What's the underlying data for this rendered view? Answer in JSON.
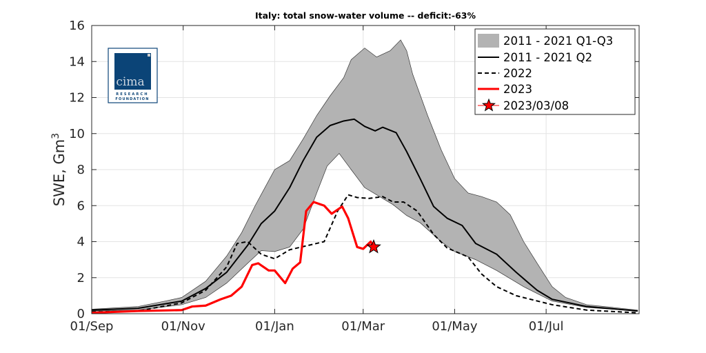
{
  "chart_data": {
    "type": "line",
    "title": "Italy: total snow-water volume -- deficit:-63%",
    "xlabel": "",
    "ylabel": "SWE, Gm",
    "ylabel_superscript": "3",
    "ylim": [
      0,
      16
    ],
    "yticks": [
      0,
      2,
      4,
      6,
      8,
      10,
      12,
      14,
      16
    ],
    "xlim": [
      "09-01",
      "08-31"
    ],
    "xticks": [
      {
        "date": "09-01",
        "label": "01/Sep"
      },
      {
        "date": "11-01",
        "label": "01/Nov"
      },
      {
        "date": "01-01",
        "label": "01/Jan"
      },
      {
        "date": "03-01",
        "label": "01/Mar"
      },
      {
        "date": "05-01",
        "label": "01/May"
      },
      {
        "date": "07-01",
        "label": "01/Jul"
      }
    ],
    "grid": true,
    "legend_position": "top-right",
    "band": {
      "name": "2011 - 2021 Q1-Q3",
      "color": "#b3b3b3",
      "upper": [
        [
          "09-01",
          0.25
        ],
        [
          "10-02",
          0.4
        ],
        [
          "10-20",
          0.7
        ],
        [
          "10-31",
          0.9
        ],
        [
          "11-16",
          1.8
        ],
        [
          "11-30",
          3.2
        ],
        [
          "12-10",
          4.5
        ],
        [
          "12-19",
          6.0
        ],
        [
          "01-01",
          8.0
        ],
        [
          "01-11",
          8.5
        ],
        [
          "01-20",
          9.7
        ],
        [
          "01-29",
          11.0
        ],
        [
          "02-07",
          12.1
        ],
        [
          "02-16",
          13.1
        ],
        [
          "02-21",
          14.1
        ],
        [
          "03-02",
          14.75
        ],
        [
          "03-10",
          14.25
        ],
        [
          "03-19",
          14.6
        ],
        [
          "03-26",
          15.2
        ],
        [
          "03-30",
          14.6
        ],
        [
          "04-03",
          13.3
        ],
        [
          "04-13",
          11.0
        ],
        [
          "04-22",
          9.1
        ],
        [
          "05-01",
          7.5
        ],
        [
          "05-10",
          6.7
        ],
        [
          "05-19",
          6.5
        ],
        [
          "05-29",
          6.2
        ],
        [
          "06-07",
          5.5
        ],
        [
          "06-16",
          4.0
        ],
        [
          "06-25",
          2.8
        ],
        [
          "07-05",
          1.5
        ],
        [
          "07-14",
          0.9
        ],
        [
          "07-28",
          0.5
        ],
        [
          "08-20",
          0.3
        ],
        [
          "08-31",
          0.2
        ]
      ],
      "lower": [
        [
          "09-01",
          0.15
        ],
        [
          "10-02",
          0.2
        ],
        [
          "10-31",
          0.5
        ],
        [
          "11-16",
          0.9
        ],
        [
          "11-30",
          1.7
        ],
        [
          "12-14",
          2.8
        ],
        [
          "12-23",
          3.5
        ],
        [
          "01-01",
          3.45
        ],
        [
          "01-11",
          3.7
        ],
        [
          "01-20",
          4.7
        ],
        [
          "01-29",
          6.7
        ],
        [
          "02-05",
          8.2
        ],
        [
          "02-13",
          8.9
        ],
        [
          "02-21",
          8.0
        ],
        [
          "03-02",
          7.0
        ],
        [
          "03-12",
          6.5
        ],
        [
          "03-21",
          6.05
        ],
        [
          "03-30",
          5.45
        ],
        [
          "04-08",
          5.05
        ],
        [
          "04-22",
          4.0
        ],
        [
          "05-01",
          3.45
        ],
        [
          "05-15",
          3.0
        ],
        [
          "05-29",
          2.4
        ],
        [
          "06-16",
          1.5
        ],
        [
          "07-05",
          0.7
        ],
        [
          "07-28",
          0.35
        ],
        [
          "08-31",
          0.15
        ]
      ]
    },
    "series": [
      {
        "name": "2011 - 2021 Q2",
        "color": "#000000",
        "style": "solid",
        "points": [
          [
            "09-01",
            0.2
          ],
          [
            "10-02",
            0.3
          ],
          [
            "10-31",
            0.7
          ],
          [
            "11-16",
            1.4
          ],
          [
            "11-30",
            2.3
          ],
          [
            "12-14",
            3.8
          ],
          [
            "12-23",
            5.0
          ],
          [
            "01-01",
            5.7
          ],
          [
            "01-11",
            7.0
          ],
          [
            "01-20",
            8.5
          ],
          [
            "01-29",
            9.8
          ],
          [
            "02-07",
            10.45
          ],
          [
            "02-16",
            10.7
          ],
          [
            "02-23",
            10.8
          ],
          [
            "03-02",
            10.4
          ],
          [
            "03-09",
            10.15
          ],
          [
            "03-14",
            10.35
          ],
          [
            "03-23",
            10.05
          ],
          [
            "03-30",
            9.0
          ],
          [
            "04-08",
            7.5
          ],
          [
            "04-17",
            5.95
          ],
          [
            "04-26",
            5.3
          ],
          [
            "05-06",
            4.9
          ],
          [
            "05-15",
            3.9
          ],
          [
            "05-29",
            3.3
          ],
          [
            "06-11",
            2.3
          ],
          [
            "06-25",
            1.3
          ],
          [
            "07-05",
            0.8
          ],
          [
            "07-28",
            0.4
          ],
          [
            "08-31",
            0.15
          ]
        ]
      },
      {
        "name": "2022",
        "color": "#000000",
        "style": "dashed",
        "points": [
          [
            "09-01",
            0.1
          ],
          [
            "10-02",
            0.15
          ],
          [
            "10-31",
            0.6
          ],
          [
            "11-16",
            1.3
          ],
          [
            "11-30",
            2.6
          ],
          [
            "12-07",
            3.9
          ],
          [
            "12-14",
            4.0
          ],
          [
            "12-23",
            3.3
          ],
          [
            "01-01",
            3.05
          ],
          [
            "01-11",
            3.55
          ],
          [
            "02-03",
            4.0
          ],
          [
            "02-12",
            5.7
          ],
          [
            "02-19",
            6.6
          ],
          [
            "02-25",
            6.45
          ],
          [
            "03-05",
            6.4
          ],
          [
            "03-14",
            6.5
          ],
          [
            "03-21",
            6.2
          ],
          [
            "03-28",
            6.2
          ],
          [
            "04-06",
            5.7
          ],
          [
            "04-17",
            4.4
          ],
          [
            "04-26",
            3.65
          ],
          [
            "05-10",
            3.15
          ],
          [
            "05-19",
            2.2
          ],
          [
            "05-29",
            1.5
          ],
          [
            "06-11",
            1.0
          ],
          [
            "07-05",
            0.5
          ],
          [
            "07-28",
            0.2
          ],
          [
            "08-31",
            0.05
          ]
        ]
      },
      {
        "name": "2023",
        "color": "#ff0000",
        "style": "solid",
        "points": [
          [
            "09-01",
            0.05
          ],
          [
            "10-02",
            0.15
          ],
          [
            "10-31",
            0.2
          ],
          [
            "11-07",
            0.4
          ],
          [
            "11-16",
            0.45
          ],
          [
            "11-26",
            0.8
          ],
          [
            "12-03",
            1.0
          ],
          [
            "12-10",
            1.5
          ],
          [
            "12-17",
            2.7
          ],
          [
            "12-21",
            2.8
          ],
          [
            "12-28",
            2.4
          ],
          [
            "01-01",
            2.4
          ],
          [
            "01-08",
            1.7
          ],
          [
            "01-13",
            2.5
          ],
          [
            "01-18",
            2.85
          ],
          [
            "01-22",
            5.7
          ],
          [
            "01-27",
            6.2
          ],
          [
            "02-03",
            6.0
          ],
          [
            "02-08",
            5.55
          ],
          [
            "02-15",
            5.95
          ],
          [
            "02-19",
            5.3
          ],
          [
            "02-25",
            3.7
          ],
          [
            "03-01",
            3.6
          ],
          [
            "03-06",
            4.0
          ],
          [
            "03-08",
            3.7
          ]
        ]
      }
    ],
    "marker": {
      "name": "2023/03/08",
      "date": "03-08",
      "value": 3.7,
      "color": "#ff0000",
      "shape": "star"
    }
  },
  "logo": {
    "main": "cima",
    "line1": "RESEARCH",
    "line2": "FOUNDATION",
    "color": "#0b4477"
  }
}
